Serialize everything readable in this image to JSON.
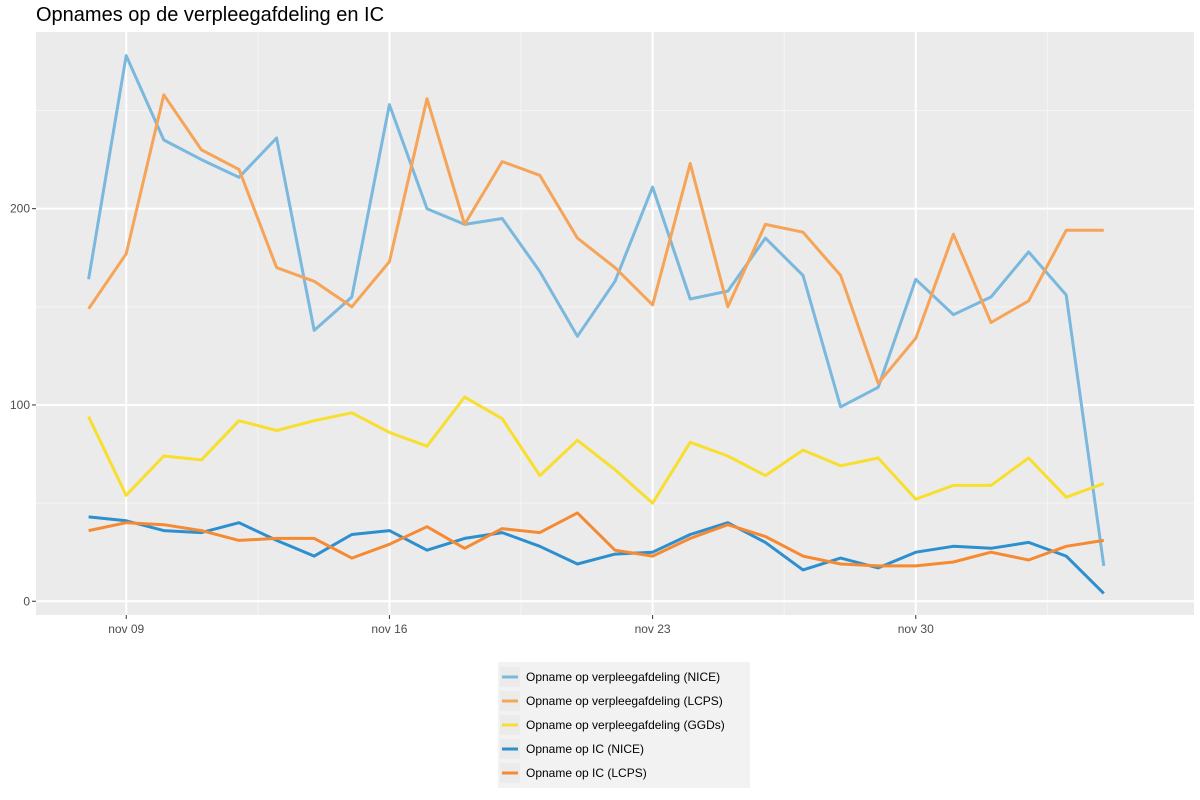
{
  "chart_data": {
    "type": "line",
    "title": "Opnames op de verpleegafdeling en IC",
    "xlabel": "",
    "ylabel": "",
    "x_start": "2020-11-08",
    "x_end": "2020-12-06",
    "x_ticks": [
      {
        "date": "2020-11-09",
        "label": "nov 09"
      },
      {
        "date": "2020-11-16",
        "label": "nov 16"
      },
      {
        "date": "2020-11-23",
        "label": "nov 23"
      },
      {
        "date": "2020-11-30",
        "label": "nov 30"
      }
    ],
    "ylim": [
      -7,
      290
    ],
    "y_ticks": [
      0,
      100,
      200
    ],
    "grid": true,
    "legend_position": "bottom",
    "series": [
      {
        "name": "Opname op verpleegafdeling (NICE)",
        "color": "#7AB8DE",
        "values": [
          164,
          278,
          235,
          225,
          216,
          236,
          138,
          155,
          253,
          200,
          192,
          195,
          168,
          135,
          163,
          211,
          154,
          158,
          185,
          166,
          99,
          109,
          164,
          146,
          155,
          178,
          156,
          18
        ]
      },
      {
        "name": "Opname op verpleegafdeling (LCPS)",
        "color": "#F5A458",
        "values": [
          149,
          177,
          258,
          230,
          220,
          170,
          163,
          150,
          173,
          256,
          192,
          224,
          217,
          185,
          170,
          151,
          223,
          150,
          192,
          188,
          166,
          111,
          134,
          187,
          142,
          153,
          189,
          189
        ]
      },
      {
        "name": "Opname op verpleegafdeling (GGDs)",
        "color": "#F8DE2E",
        "values": [
          94,
          54,
          74,
          72,
          92,
          87,
          92,
          96,
          86,
          79,
          104,
          93,
          64,
          82,
          67,
          50,
          81,
          74,
          64,
          77,
          69,
          73,
          52,
          59,
          59,
          73,
          53,
          60
        ]
      },
      {
        "name": "Opname op IC (NICE)",
        "color": "#2D8FCE",
        "values": [
          43,
          41,
          36,
          35,
          40,
          31,
          23,
          34,
          36,
          26,
          32,
          35,
          28,
          19,
          24,
          25,
          34,
          40,
          30,
          16,
          22,
          17,
          25,
          28,
          27,
          30,
          23,
          4
        ]
      },
      {
        "name": "Opname op IC (LCPS)",
        "color": "#F58A33",
        "values": [
          36,
          40,
          39,
          36,
          31,
          32,
          32,
          22,
          29,
          38,
          27,
          37,
          35,
          45,
          26,
          23,
          32,
          39,
          33,
          23,
          19,
          18,
          18,
          20,
          25,
          21,
          28,
          31
        ]
      }
    ]
  }
}
